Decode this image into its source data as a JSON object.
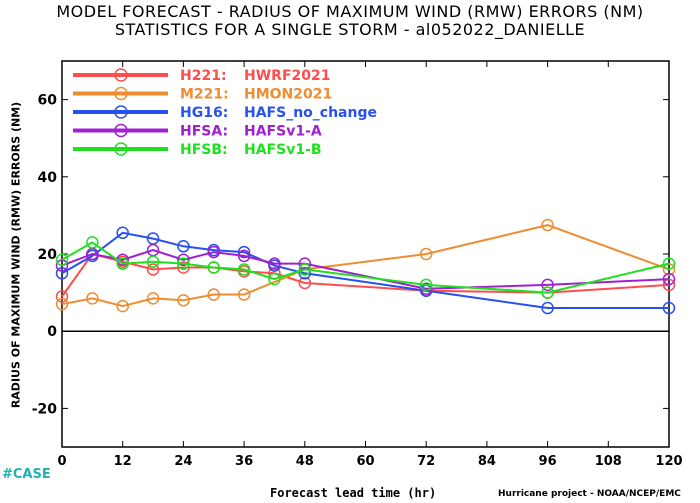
{
  "chart_data": {
    "type": "line",
    "title": "MODEL FORECAST - RADIUS OF MAXIMUM WIND (RMW) ERRORS (NM)",
    "subtitle": "STATISTICS FOR A SINGLE STORM - al052022_DANIELLE",
    "xlabel": "Forecast lead time (hr)",
    "ylabel": "RADIUS OF MAXIMUM WIND (RMW) ERRORS (NM)",
    "xlim": [
      0,
      120
    ],
    "ylim": [
      -30,
      70
    ],
    "xticks": [
      "0",
      "12",
      "24",
      "36",
      "48",
      "60",
      "72",
      "84",
      "96",
      "108",
      "120"
    ],
    "yticks": [
      "-20",
      "0",
      "20",
      "40",
      "60"
    ],
    "legend_position": "top-left",
    "series": [
      {
        "name": "H221:",
        "desc": "HWRF2021",
        "color": "#ff4d4d",
        "x": [
          0,
          6,
          12,
          18,
          24,
          30,
          36,
          42,
          48,
          72,
          96,
          120
        ],
        "y": [
          9,
          20,
          18,
          16,
          16.5,
          16.5,
          15.5,
          15,
          12.5,
          10.5,
          10,
          12
        ]
      },
      {
        "name": "M221:",
        "desc": "HMON2021",
        "color": "#f08c30",
        "x": [
          0,
          6,
          12,
          18,
          24,
          30,
          36,
          48,
          72,
          96,
          120
        ],
        "y": [
          7,
          8.5,
          6.5,
          8.5,
          8,
          9.5,
          9.5,
          16,
          20,
          27.5,
          16
        ]
      },
      {
        "name": "HG16:",
        "desc": "HAFS_no_change",
        "color": "#2850f0",
        "x": [
          0,
          6,
          12,
          18,
          24,
          30,
          36,
          42,
          48,
          72,
          96,
          120
        ],
        "y": [
          15,
          19.5,
          25.5,
          24,
          22,
          21,
          20.5,
          17,
          15,
          10.5,
          6,
          6
        ]
      },
      {
        "name": "HFSA:",
        "desc": "HAFSv1-A",
        "color": "#a020d0",
        "x": [
          0,
          6,
          12,
          18,
          24,
          30,
          36,
          42,
          48,
          72,
          96,
          120
        ],
        "y": [
          17,
          20,
          18.5,
          21,
          18.5,
          20.5,
          19.5,
          17.5,
          17.5,
          11,
          12,
          13.5
        ]
      },
      {
        "name": "HFSB:",
        "desc": "HAFSv1-B",
        "color": "#1ee01e",
        "x": [
          0,
          6,
          12,
          18,
          24,
          30,
          36,
          42,
          48,
          72,
          96,
          120
        ],
        "y": [
          18.5,
          23,
          17.5,
          18,
          17.5,
          16.5,
          16,
          13.5,
          16,
          12,
          10,
          17.5
        ]
      }
    ],
    "annotations": {
      "case": "#CASE",
      "credit": "Hurricane project - NOAA/NCEP/EMC"
    }
  }
}
